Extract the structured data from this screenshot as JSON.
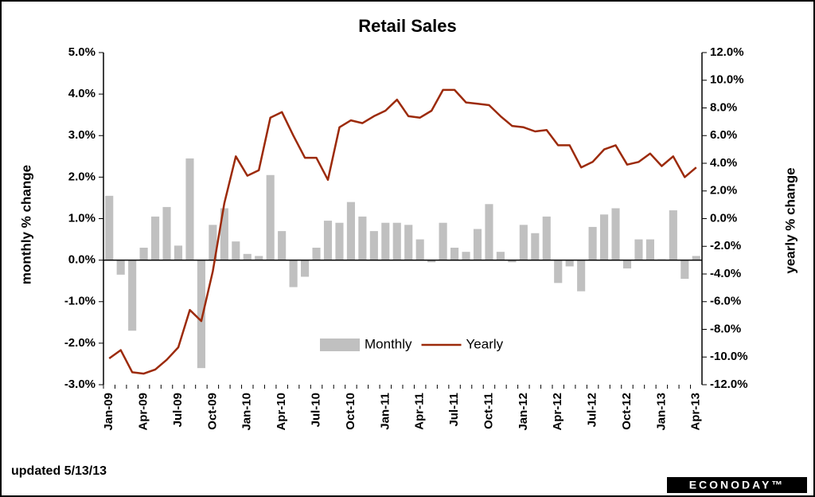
{
  "chart_data": {
    "type": "bar-line",
    "title": "Retail Sales",
    "ylabel": "monthly % change",
    "y2label": "yearly % change",
    "footnote": "updated 5/13/13",
    "logo": "ECONODAY™",
    "categories": [
      "Jan-09",
      null,
      null,
      "Apr-09",
      null,
      null,
      "Jul-09",
      null,
      null,
      "Oct-09",
      null,
      null,
      "Jan-10",
      null,
      null,
      "Apr-10",
      null,
      null,
      "Jul-10",
      null,
      null,
      "Oct-10",
      null,
      null,
      "Jan-11",
      null,
      null,
      "Apr-11",
      null,
      null,
      "Jul-11",
      null,
      null,
      "Oct-11",
      null,
      null,
      "Jan-12",
      null,
      null,
      "Apr-12",
      null,
      null,
      "Jul-12",
      null,
      null,
      "Oct-12",
      null,
      null,
      "Jan-13",
      null,
      null,
      "Apr-13"
    ],
    "series": [
      {
        "name": "Monthly",
        "type": "bar",
        "color": "#c0c0c0",
        "axis": "y",
        "values": [
          1.55,
          -0.35,
          -1.7,
          0.3,
          1.05,
          1.28,
          0.35,
          2.45,
          -2.6,
          0.85,
          1.25,
          0.45,
          0.15,
          0.1,
          2.05,
          0.7,
          -0.65,
          -0.4,
          0.3,
          0.95,
          0.9,
          1.4,
          1.05,
          0.7,
          0.9,
          0.9,
          0.85,
          0.5,
          -0.05,
          0.9,
          0.3,
          0.2,
          0.75,
          1.35,
          0.2,
          -0.05,
          0.85,
          0.65,
          1.05,
          -0.55,
          -0.15,
          -0.75,
          0.8,
          1.1,
          1.25,
          -0.2,
          0.5,
          0.5,
          0.02,
          1.2,
          -0.45,
          0.1
        ]
      },
      {
        "name": "Yearly",
        "type": "line",
        "color": "#9c2a0a",
        "axis": "y2",
        "values": [
          -10.1,
          -9.5,
          -11.1,
          -11.2,
          -10.9,
          -10.2,
          -9.3,
          -6.6,
          -7.4,
          -3.8,
          1.1,
          4.5,
          3.1,
          3.5,
          7.3,
          7.7,
          6.0,
          4.4,
          4.4,
          2.8,
          6.6,
          7.1,
          6.9,
          7.4,
          7.8,
          8.6,
          7.4,
          7.3,
          7.8,
          9.3,
          9.3,
          8.4,
          8.3,
          8.2,
          7.4,
          6.7,
          6.6,
          6.3,
          6.4,
          5.3,
          5.3,
          3.7,
          4.1,
          5.0,
          5.3,
          3.9,
          4.1,
          4.7,
          3.8,
          4.5,
          3.0,
          3.7
        ]
      }
    ],
    "ylim": [
      -3,
      5
    ],
    "yticks": [
      {
        "value": -3,
        "label": "-3.0%"
      },
      {
        "value": -2,
        "label": "-2.0%"
      },
      {
        "value": -1,
        "label": "-1.0%"
      },
      {
        "value": 0,
        "label": "0.0%"
      },
      {
        "value": 1,
        "label": "1.0%"
      },
      {
        "value": 2,
        "label": "2.0%"
      },
      {
        "value": 3,
        "label": "3.0%"
      },
      {
        "value": 4,
        "label": "4.0%"
      },
      {
        "value": 5,
        "label": "5.0%"
      }
    ],
    "y2lim": [
      -12,
      12
    ],
    "y2ticks": [
      {
        "value": -12,
        "label": "-12.0%"
      },
      {
        "value": -10,
        "label": "-10.0%"
      },
      {
        "value": -8,
        "label": "-8.0%"
      },
      {
        "value": -6,
        "label": "-6.0%"
      },
      {
        "value": -4,
        "label": "-4.0%"
      },
      {
        "value": -2,
        "label": "-2.0%"
      },
      {
        "value": 0,
        "label": "0.0%"
      },
      {
        "value": 2,
        "label": "2.0%"
      },
      {
        "value": 4,
        "label": "4.0%"
      },
      {
        "value": 6,
        "label": "6.0%"
      },
      {
        "value": 8,
        "label": "8.0%"
      },
      {
        "value": 10,
        "label": "10.0%"
      },
      {
        "value": 12,
        "label": "12.0%"
      }
    ],
    "grid": false
  }
}
